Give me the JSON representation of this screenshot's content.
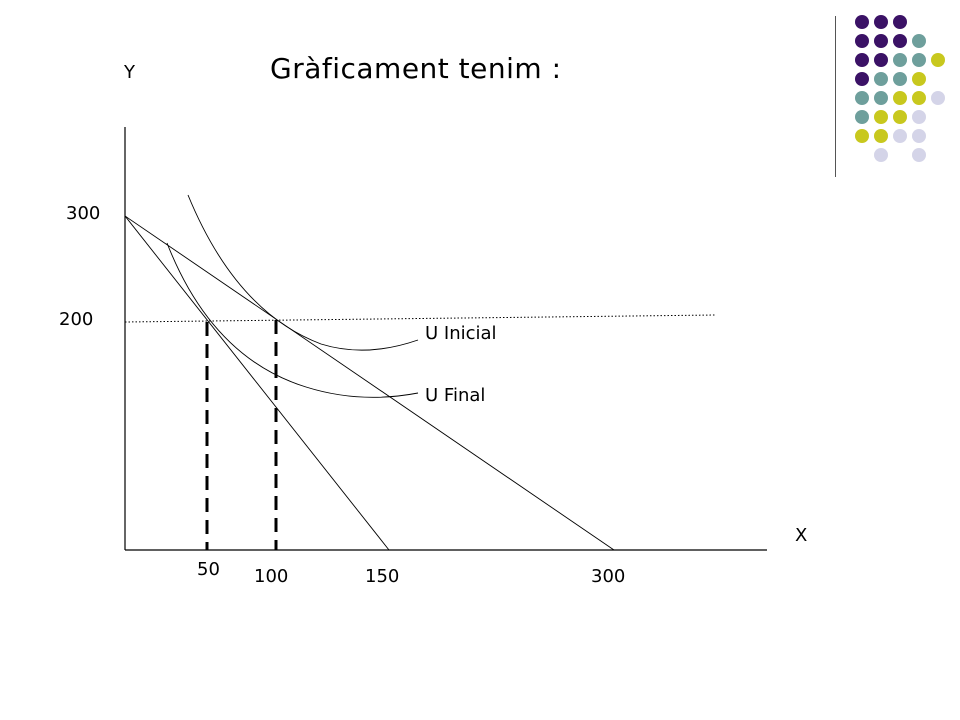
{
  "title": "Gràficament tenim :",
  "axes": {
    "y_label": "Y",
    "x_label": "X"
  },
  "ticks": {
    "y_300": "300",
    "y_200": "200",
    "x_50": "50",
    "x_100": "100",
    "x_150": "150",
    "x_300": "300"
  },
  "curves": {
    "u_inicial": "U Inicial",
    "u_final": "U Final"
  },
  "colors": {
    "purple": "#3b1266",
    "teal": "#6e9f9c",
    "lime": "#c8c81e",
    "lavender": "#d4d4e8",
    "line": "#000000"
  },
  "decor_dots": [
    [
      "purple",
      "purple",
      "purple",
      "",
      ""
    ],
    [
      "purple",
      "purple",
      "purple",
      "teal",
      ""
    ],
    [
      "purple",
      "purple",
      "teal",
      "teal",
      "lime"
    ],
    [
      "purple",
      "teal",
      "teal",
      "lime",
      ""
    ],
    [
      "teal",
      "teal",
      "lime",
      "lime",
      "lavender"
    ],
    [
      "teal",
      "lime",
      "lime",
      "lavender",
      ""
    ],
    [
      "lime",
      "lime",
      "lavender",
      "lavender",
      ""
    ],
    [
      "",
      "lavender",
      "",
      "lavender",
      ""
    ]
  ]
}
